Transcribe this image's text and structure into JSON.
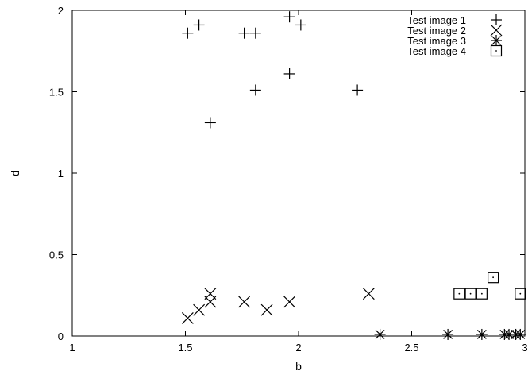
{
  "chart_data": {
    "type": "scatter",
    "xlabel": "b",
    "ylabel": "d",
    "xlim": [
      1,
      3
    ],
    "ylim": [
      0,
      2
    ],
    "xticks": [
      1,
      1.5,
      2,
      2.5,
      3
    ],
    "xtick_labels": [
      "1",
      "1.5",
      "2",
      "2.5",
      "3"
    ],
    "yticks": [
      0,
      0.5,
      1,
      1.5,
      2
    ],
    "ytick_labels": [
      "0",
      "0.5",
      "1",
      "1.5",
      "2"
    ],
    "grid": false,
    "legend_position": "top-right",
    "series": [
      {
        "name": "Test image 1",
        "marker": "plus",
        "points": [
          [
            1.51,
            1.86
          ],
          [
            1.56,
            1.91
          ],
          [
            1.61,
            1.31
          ],
          [
            1.76,
            1.86
          ],
          [
            1.81,
            1.86
          ],
          [
            1.81,
            1.51
          ],
          [
            1.96,
            1.96
          ],
          [
            1.96,
            1.61
          ],
          [
            2.01,
            1.91
          ],
          [
            2.26,
            1.51
          ]
        ]
      },
      {
        "name": "Test image 2",
        "marker": "cross",
        "points": [
          [
            1.51,
            0.11
          ],
          [
            1.56,
            0.16
          ],
          [
            1.61,
            0.21
          ],
          [
            1.61,
            0.26
          ],
          [
            1.76,
            0.21
          ],
          [
            1.86,
            0.16
          ],
          [
            1.96,
            0.21
          ],
          [
            2.31,
            0.26
          ]
        ]
      },
      {
        "name": "Test image 3",
        "marker": "star",
        "points": [
          [
            2.36,
            0.01
          ],
          [
            2.66,
            0.01
          ],
          [
            2.81,
            0.01
          ],
          [
            2.91,
            0.01
          ],
          [
            2.93,
            0.01
          ],
          [
            2.96,
            0.01
          ],
          [
            2.98,
            0.01
          ]
        ]
      },
      {
        "name": "Test image 4",
        "marker": "dotted-square",
        "points": [
          [
            2.71,
            0.26
          ],
          [
            2.76,
            0.26
          ],
          [
            2.81,
            0.26
          ],
          [
            2.86,
            0.36
          ],
          [
            2.98,
            0.26
          ]
        ]
      }
    ]
  }
}
